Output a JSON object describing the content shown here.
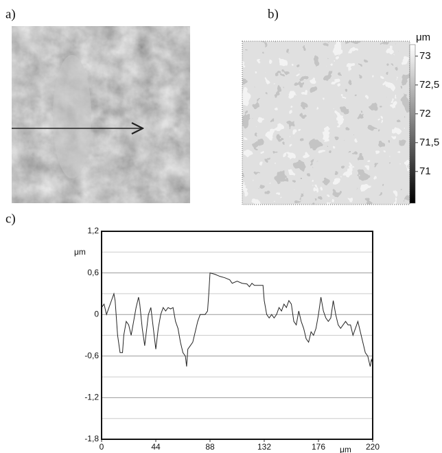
{
  "panel_labels": [
    "a)",
    "b)",
    "c)"
  ],
  "colorbar": {
    "unit": "μm",
    "lim": [
      70.45,
      73.2
    ],
    "ticks": [
      73,
      {
        "value": 72.5,
        "label": "72,5"
      },
      72,
      {
        "value": 71.5,
        "label": "71,5"
      },
      71
    ]
  },
  "chart_data": {
    "type": "line",
    "ylabel": "μm",
    "xlabel": "μm",
    "xlim": [
      0,
      220
    ],
    "xticks": [
      0,
      44,
      88,
      132,
      176,
      220
    ],
    "ylim": [
      -1.8,
      1.2
    ],
    "yticks": [
      {
        "value": 1.2,
        "label": "1,2"
      },
      {
        "value": 0.6,
        "label": "0,6"
      },
      0,
      {
        "value": -0.6,
        "label": "-0,6"
      },
      {
        "value": -1.2,
        "label": "-1,2"
      },
      {
        "value": -1.8,
        "label": "-1,8"
      }
    ],
    "grid_y": [
      0.9,
      0.3,
      -0.3,
      -0.9,
      -1.5
    ],
    "color": "#222222",
    "x": [
      0,
      2,
      4,
      6,
      8,
      10,
      11,
      13,
      15,
      17,
      18,
      20,
      22,
      24,
      26,
      28,
      30,
      31,
      33,
      35,
      36,
      38,
      40,
      42,
      44,
      46,
      48,
      50,
      52,
      54,
      56,
      58,
      60,
      62,
      64,
      66,
      68,
      69,
      70,
      72,
      74,
      76,
      78,
      80,
      82,
      84,
      86,
      87,
      88,
      92,
      96,
      100,
      104,
      106,
      110,
      114,
      118,
      120,
      122,
      124,
      128,
      131,
      132,
      134,
      136,
      138,
      140,
      142,
      144,
      146,
      148,
      150,
      152,
      154,
      156,
      158,
      160,
      162,
      164,
      166,
      168,
      170,
      172,
      174,
      176,
      178,
      180,
      182,
      184,
      186,
      188,
      190,
      192,
      194,
      196,
      198,
      200,
      202,
      204,
      206,
      208,
      210,
      212,
      214,
      216,
      218,
      219,
      220
    ],
    "values": [
      0.1,
      0.15,
      0.0,
      0.1,
      0.2,
      0.3,
      0.2,
      -0.3,
      -0.55,
      -0.55,
      -0.3,
      -0.1,
      -0.15,
      -0.3,
      -0.1,
      0.1,
      0.25,
      0.15,
      -0.2,
      -0.45,
      -0.3,
      0.0,
      0.1,
      -0.2,
      -0.5,
      -0.2,
      0.0,
      0.1,
      0.05,
      0.1,
      0.08,
      0.1,
      -0.1,
      -0.2,
      -0.4,
      -0.55,
      -0.6,
      -0.75,
      -0.5,
      -0.45,
      -0.4,
      -0.25,
      -0.1,
      0.0,
      0.0,
      0.0,
      0.05,
      0.3,
      0.6,
      0.58,
      0.55,
      0.53,
      0.5,
      0.45,
      0.48,
      0.45,
      0.44,
      0.4,
      0.45,
      0.42,
      0.42,
      0.42,
      0.2,
      0.0,
      -0.05,
      0.0,
      -0.05,
      0.0,
      0.1,
      0.05,
      0.15,
      0.1,
      0.2,
      0.15,
      -0.1,
      -0.15,
      0.05,
      -0.1,
      -0.2,
      -0.35,
      -0.4,
      -0.25,
      -0.3,
      -0.2,
      0.0,
      0.25,
      0.05,
      -0.05,
      -0.1,
      -0.05,
      0.2,
      0.0,
      -0.15,
      -0.2,
      -0.15,
      -0.1,
      -0.15,
      -0.15,
      -0.3,
      -0.2,
      -0.1,
      -0.25,
      -0.4,
      -0.55,
      -0.6,
      -0.75,
      -0.65,
      -0.7
    ]
  }
}
